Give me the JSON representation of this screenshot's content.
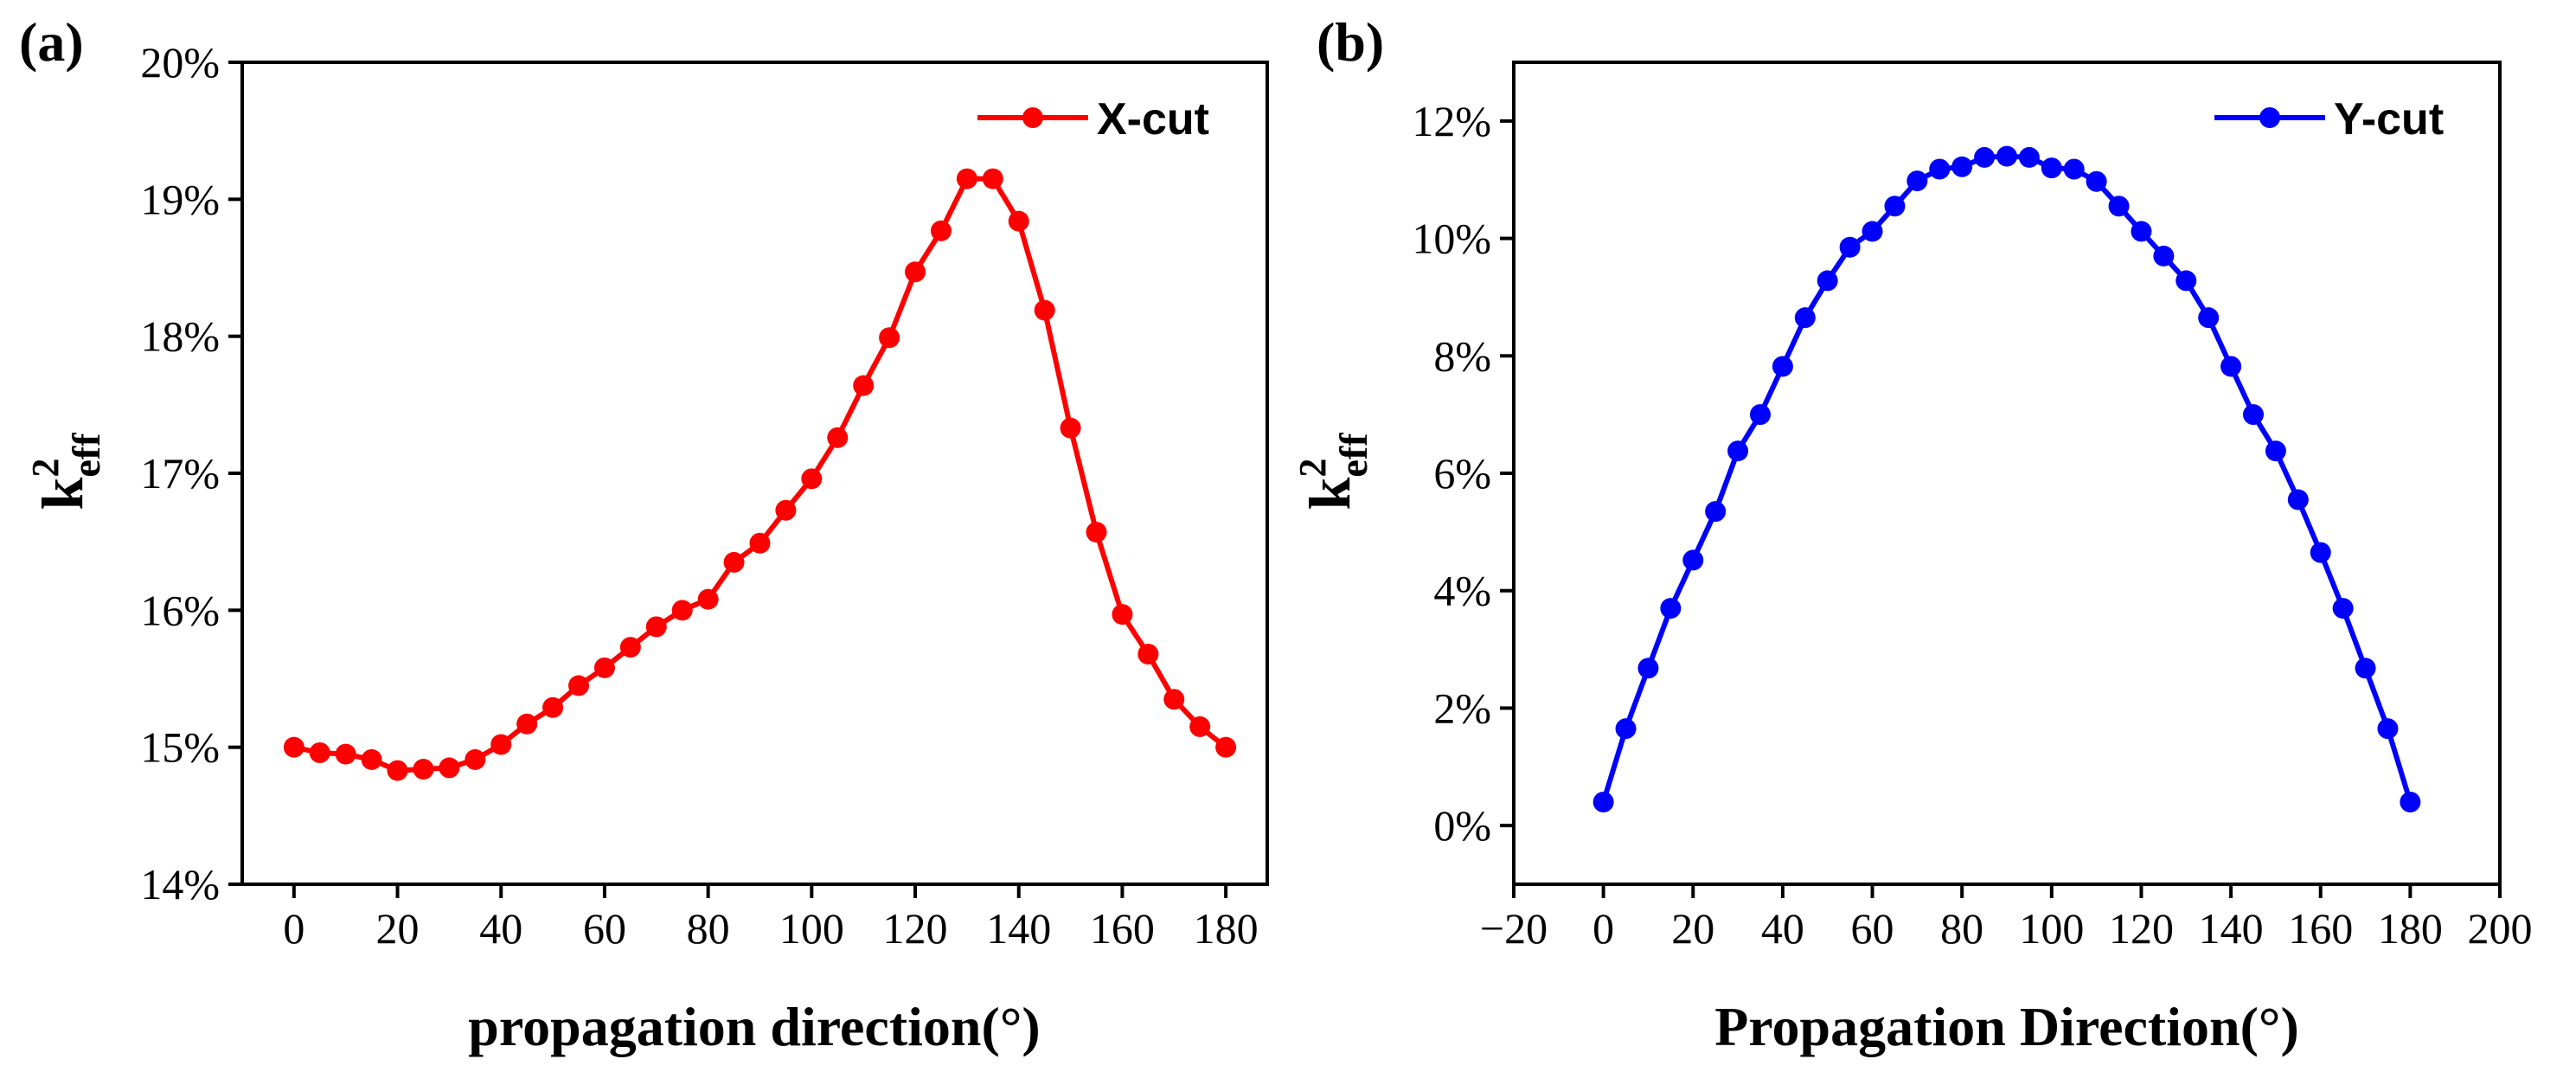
{
  "chart_data": [
    {
      "type": "line",
      "panel_label": "(a)",
      "title": "",
      "xlabel": "propagation direction(°)",
      "ylabel": {
        "main": "k",
        "sup": "2",
        "sub": "eff"
      },
      "xlim": [
        -10,
        188
      ],
      "ylim": [
        14,
        20
      ],
      "xticks": [
        0,
        20,
        40,
        60,
        80,
        100,
        120,
        140,
        160,
        180
      ],
      "yticks": [
        14,
        15,
        16,
        17,
        18,
        19,
        20
      ],
      "ytick_labels": [
        "14%",
        "15%",
        "16%",
        "17%",
        "18%",
        "19%",
        "20%"
      ],
      "legend_position": "top-right",
      "series": [
        {
          "name": "X-cut",
          "color": "#ff0000",
          "x": [
            0,
            5,
            10,
            15,
            20,
            25,
            30,
            35,
            40,
            45,
            50,
            55,
            60,
            65,
            70,
            75,
            80,
            85,
            90,
            95,
            100,
            105,
            110,
            115,
            120,
            125,
            130,
            135,
            140,
            145,
            150,
            155,
            160,
            165,
            170,
            175,
            180
          ],
          "values": [
            15.0,
            14.96,
            14.95,
            14.91,
            14.83,
            14.84,
            14.85,
            14.91,
            15.02,
            15.17,
            15.29,
            15.45,
            15.58,
            15.73,
            15.88,
            16.0,
            16.08,
            16.35,
            16.49,
            16.73,
            16.96,
            17.26,
            17.64,
            17.99,
            18.47,
            18.77,
            19.15,
            19.15,
            18.84,
            18.19,
            17.33,
            16.57,
            15.97,
            15.68,
            15.35,
            15.15,
            15.0
          ]
        }
      ]
    },
    {
      "type": "line",
      "panel_label": "(b)",
      "title": "",
      "xlabel": "Propagation Direction(°)",
      "ylabel": {
        "main": "k",
        "sup": "2",
        "sub": "eff"
      },
      "xlim": [
        -20,
        200
      ],
      "ylim": [
        -1,
        13
      ],
      "xticks": [
        -20,
        0,
        20,
        40,
        60,
        80,
        100,
        120,
        140,
        160,
        180,
        200
      ],
      "xtick_labels": [
        "−20",
        "0",
        "20",
        "40",
        "60",
        "80",
        "100",
        "120",
        "140",
        "160",
        "180",
        "200"
      ],
      "yticks": [
        0,
        2,
        4,
        6,
        8,
        10,
        12
      ],
      "ytick_labels": [
        "0%",
        "2%",
        "4%",
        "6%",
        "8%",
        "10%",
        "12%"
      ],
      "legend_position": "top-right",
      "series": [
        {
          "name": "Y-cut",
          "color": "#0000ff",
          "x": [
            0,
            5,
            10,
            15,
            20,
            25,
            30,
            35,
            40,
            45,
            50,
            55,
            60,
            65,
            70,
            75,
            80,
            85,
            90,
            95,
            100,
            105,
            110,
            115,
            120,
            125,
            130,
            135,
            140,
            145,
            150,
            155,
            160,
            165,
            170,
            175,
            180
          ],
          "values": [
            0.4,
            1.65,
            2.68,
            3.7,
            4.52,
            5.35,
            6.38,
            7.0,
            7.82,
            8.65,
            9.28,
            9.85,
            10.12,
            10.55,
            10.98,
            11.18,
            11.22,
            11.38,
            11.4,
            11.38,
            11.2,
            11.18,
            10.97,
            10.55,
            10.12,
            9.7,
            9.28,
            8.65,
            7.82,
            7.0,
            6.38,
            5.55,
            4.65,
            3.7,
            2.68,
            1.65,
            0.4
          ]
        }
      ]
    }
  ]
}
